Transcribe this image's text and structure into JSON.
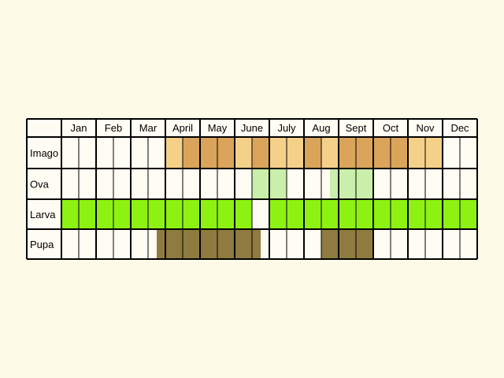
{
  "chart_data": {
    "type": "table",
    "months": [
      "Jan",
      "Feb",
      "Mar",
      "April",
      "May",
      "June",
      "July",
      "Aug",
      "Sept",
      "Oct",
      "Nov",
      "Dec"
    ],
    "stages": [
      {
        "label": "Imago",
        "key": "imago",
        "periods": [
          {
            "start": 6.0,
            "end": 7.0,
            "level": "light"
          },
          {
            "start": 7.0,
            "end": 10.0,
            "level": "dark"
          },
          {
            "start": 10.0,
            "end": 11.0,
            "level": "light"
          },
          {
            "start": 11.0,
            "end": 12.0,
            "level": "dark"
          },
          {
            "start": 12.0,
            "end": 14.0,
            "level": "light"
          },
          {
            "start": 14.0,
            "end": 15.0,
            "level": "dark"
          },
          {
            "start": 15.0,
            "end": 16.0,
            "level": "light"
          },
          {
            "start": 16.0,
            "end": 20.0,
            "level": "dark"
          },
          {
            "start": 20.0,
            "end": 22.0,
            "level": "light"
          }
        ]
      },
      {
        "label": "Ova",
        "key": "ova",
        "periods": [
          {
            "start": 11.0,
            "end": 13.0,
            "level": "light"
          },
          {
            "start": 15.5,
            "end": 18.0,
            "level": "light"
          }
        ]
      },
      {
        "label": "Larva",
        "key": "larva",
        "periods": [
          {
            "start": 0.0,
            "end": 11.0,
            "level": "full"
          },
          {
            "start": 12.0,
            "end": 24.0,
            "level": "full"
          }
        ]
      },
      {
        "label": "Pupa",
        "key": "pupa",
        "periods": [
          {
            "start": 5.5,
            "end": 11.5,
            "level": "full"
          },
          {
            "start": 15.0,
            "end": 18.0,
            "level": "full"
          }
        ]
      }
    ],
    "colors": {
      "background": "#fdfae7",
      "cell": "#fffdf3",
      "grid": "#000000",
      "imago_light": "#f5d089",
      "imago_dark": "#dba45b",
      "ova": "#c9efaa",
      "larva": "#8df211",
      "pupa": "#8f7a3f"
    }
  }
}
